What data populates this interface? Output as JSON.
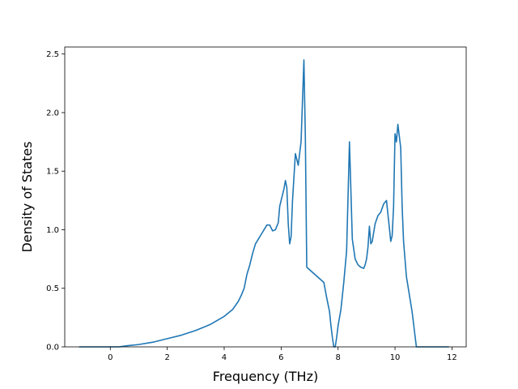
{
  "chart_data": {
    "type": "line",
    "xlabel": "Frequency (THz)",
    "ylabel": "Density of States",
    "xlim": [
      -1.6,
      12.5
    ],
    "ylim": [
      0.0,
      2.56
    ],
    "x_ticks": [
      0,
      2,
      4,
      6,
      8,
      10,
      12
    ],
    "y_ticks": [
      0.0,
      0.5,
      1.0,
      1.5,
      2.0,
      2.5
    ],
    "x_tick_labels": [
      "0",
      "2",
      "4",
      "6",
      "8",
      "10",
      "12"
    ],
    "y_tick_labels": [
      "0.0",
      "0.5",
      "1.0",
      "1.5",
      "2.0",
      "2.5"
    ],
    "grid": false,
    "series": [
      {
        "color": "#1f77b4",
        "x": [
          -1.1,
          -0.5,
          0.0,
          0.3,
          0.6,
          1.0,
          1.5,
          2.0,
          2.5,
          3.0,
          3.5,
          4.0,
          4.3,
          4.5,
          4.6,
          4.7,
          4.75,
          4.8,
          4.9,
          5.0,
          5.1,
          5.15,
          5.2,
          5.3,
          5.35,
          5.4,
          5.5,
          5.6,
          5.7,
          5.8,
          5.9,
          5.95,
          6.0,
          6.05,
          6.1,
          6.15,
          6.2,
          6.25,
          6.3,
          6.35,
          6.4,
          6.5,
          6.6,
          6.7,
          6.8,
          6.85,
          6.9,
          7.5,
          7.6,
          7.7,
          7.75,
          7.8,
          7.85,
          7.9,
          7.95,
          8.0,
          8.1,
          8.2,
          8.3,
          8.4,
          8.5,
          8.6,
          8.7,
          8.8,
          8.9,
          8.95,
          9.0,
          9.05,
          9.1,
          9.15,
          9.2,
          9.3,
          9.4,
          9.5,
          9.6,
          9.7,
          9.8,
          9.85,
          9.9,
          9.95,
          10.0,
          10.05,
          10.1,
          10.15,
          10.2,
          10.25,
          10.3,
          10.35,
          10.4,
          10.5,
          10.6,
          10.7,
          10.75,
          10.8,
          10.85,
          11.0,
          11.9
        ],
        "y": [
          0.0,
          0.0,
          0.0,
          0.0,
          0.01,
          0.02,
          0.04,
          0.07,
          0.1,
          0.14,
          0.19,
          0.26,
          0.32,
          0.39,
          0.44,
          0.5,
          0.56,
          0.62,
          0.7,
          0.8,
          0.88,
          0.9,
          0.92,
          0.96,
          0.98,
          1.0,
          1.04,
          1.04,
          0.99,
          1.0,
          1.06,
          1.2,
          1.25,
          1.3,
          1.35,
          1.42,
          1.36,
          1.05,
          0.88,
          0.94,
          1.25,
          1.65,
          1.55,
          1.75,
          2.45,
          1.8,
          0.68,
          0.55,
          0.42,
          0.3,
          0.18,
          0.08,
          0.0,
          0.0,
          0.08,
          0.18,
          0.32,
          0.55,
          0.82,
          1.75,
          0.92,
          0.75,
          0.7,
          0.68,
          0.67,
          0.7,
          0.75,
          0.85,
          1.03,
          0.88,
          0.9,
          1.05,
          1.12,
          1.15,
          1.22,
          1.25,
          1.02,
          0.9,
          0.95,
          1.2,
          1.82,
          1.75,
          1.9,
          1.8,
          1.7,
          1.2,
          0.9,
          0.75,
          0.6,
          0.45,
          0.3,
          0.1,
          0.0,
          0.0,
          0.0,
          0.0,
          0.0
        ]
      }
    ]
  }
}
